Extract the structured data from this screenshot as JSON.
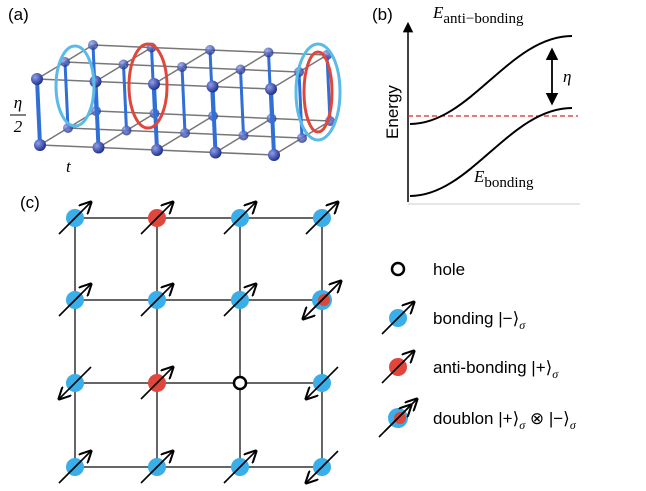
{
  "panels": {
    "a": {
      "label": "(a)",
      "hopping_label": "t",
      "coupling_numerator": "η",
      "coupling_denominator": "2"
    },
    "b": {
      "label": "(b)",
      "upper_band_symbol": "E",
      "upper_band_subscript": "anti−bonding",
      "lower_band_symbol": "E",
      "lower_band_subscript": "bonding",
      "gap_label": "η",
      "y_axis_label": "Energy"
    },
    "c": {
      "label": "(c)",
      "legend": [
        {
          "text": "hole"
        },
        {
          "text": "bonding |−⟩",
          "subscript": "σ"
        },
        {
          "text": "anti-bonding |+⟩",
          "subscript": "σ"
        },
        {
          "text": "doublon |+⟩",
          "subscript": "σ",
          "text2": " ⊗ |−⟩",
          "subscript2": "σ"
        }
      ]
    }
  }
}
